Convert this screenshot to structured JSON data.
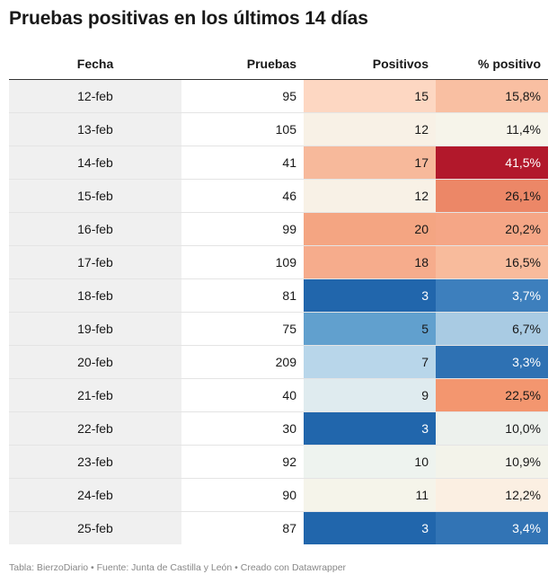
{
  "title": "Pruebas positivas en los últimos 14 días",
  "footer": "Tabla: BierzoDiario • Fuente: Junta de Castilla y León • Creado con Datawrapper",
  "chart_data": {
    "type": "table",
    "columns": [
      "Fecha",
      "Pruebas",
      "Positivos",
      "% positivo"
    ],
    "rows": [
      {
        "fecha": "12-feb",
        "pruebas": "95",
        "positivos": "15",
        "positivo_pct": "15,8%",
        "pos_color": "#fdd7c2",
        "pct_color": "#f9bfa2"
      },
      {
        "fecha": "13-feb",
        "pruebas": "105",
        "positivos": "12",
        "positivo_pct": "11,4%",
        "pos_color": "#f8f1e6",
        "pct_color": "#f6f4ea"
      },
      {
        "fecha": "14-feb",
        "pruebas": "41",
        "positivos": "17",
        "positivo_pct": "41,5%",
        "pos_color": "#f7b99b",
        "pct_color": "#b2182b"
      },
      {
        "fecha": "15-feb",
        "pruebas": "46",
        "positivos": "12",
        "positivo_pct": "26,1%",
        "pos_color": "#f8f1e6",
        "pct_color": "#ec8767"
      },
      {
        "fecha": "16-feb",
        "pruebas": "99",
        "positivos": "20",
        "positivo_pct": "20,2%",
        "pos_color": "#f4a582",
        "pct_color": "#f5a686"
      },
      {
        "fecha": "17-feb",
        "pruebas": "109",
        "positivos": "18",
        "positivo_pct": "16,5%",
        "pos_color": "#f6ac8c",
        "pct_color": "#f8bb9c"
      },
      {
        "fecha": "18-feb",
        "pruebas": "81",
        "positivos": "3",
        "positivo_pct": "3,7%",
        "pos_color": "#2166ac",
        "pct_color": "#3d7fbd"
      },
      {
        "fecha": "19-feb",
        "pruebas": "75",
        "positivos": "5",
        "positivo_pct": "6,7%",
        "pos_color": "#61a0ce",
        "pct_color": "#a9cbe3"
      },
      {
        "fecha": "20-feb",
        "pruebas": "209",
        "positivos": "7",
        "positivo_pct": "3,3%",
        "pos_color": "#b8d6ea",
        "pct_color": "#2e71b3"
      },
      {
        "fecha": "21-feb",
        "pruebas": "40",
        "positivos": "9",
        "positivo_pct": "22,5%",
        "pos_color": "#dfebef",
        "pct_color": "#f3966f"
      },
      {
        "fecha": "22-feb",
        "pruebas": "30",
        "positivos": "3",
        "positivo_pct": "10,0%",
        "pos_color": "#2166ac",
        "pct_color": "#edf1ed"
      },
      {
        "fecha": "23-feb",
        "pruebas": "92",
        "positivos": "10",
        "positivo_pct": "10,9%",
        "pos_color": "#eef3ef",
        "pct_color": "#f3f3ea"
      },
      {
        "fecha": "24-feb",
        "pruebas": "90",
        "positivos": "11",
        "positivo_pct": "12,2%",
        "pos_color": "#f5f4ea",
        "pct_color": "#fbefe2"
      },
      {
        "fecha": "25-feb",
        "pruebas": "87",
        "positivos": "3",
        "positivo_pct": "3,4%",
        "pos_color": "#2166ac",
        "pct_color": "#3274b5"
      }
    ]
  }
}
